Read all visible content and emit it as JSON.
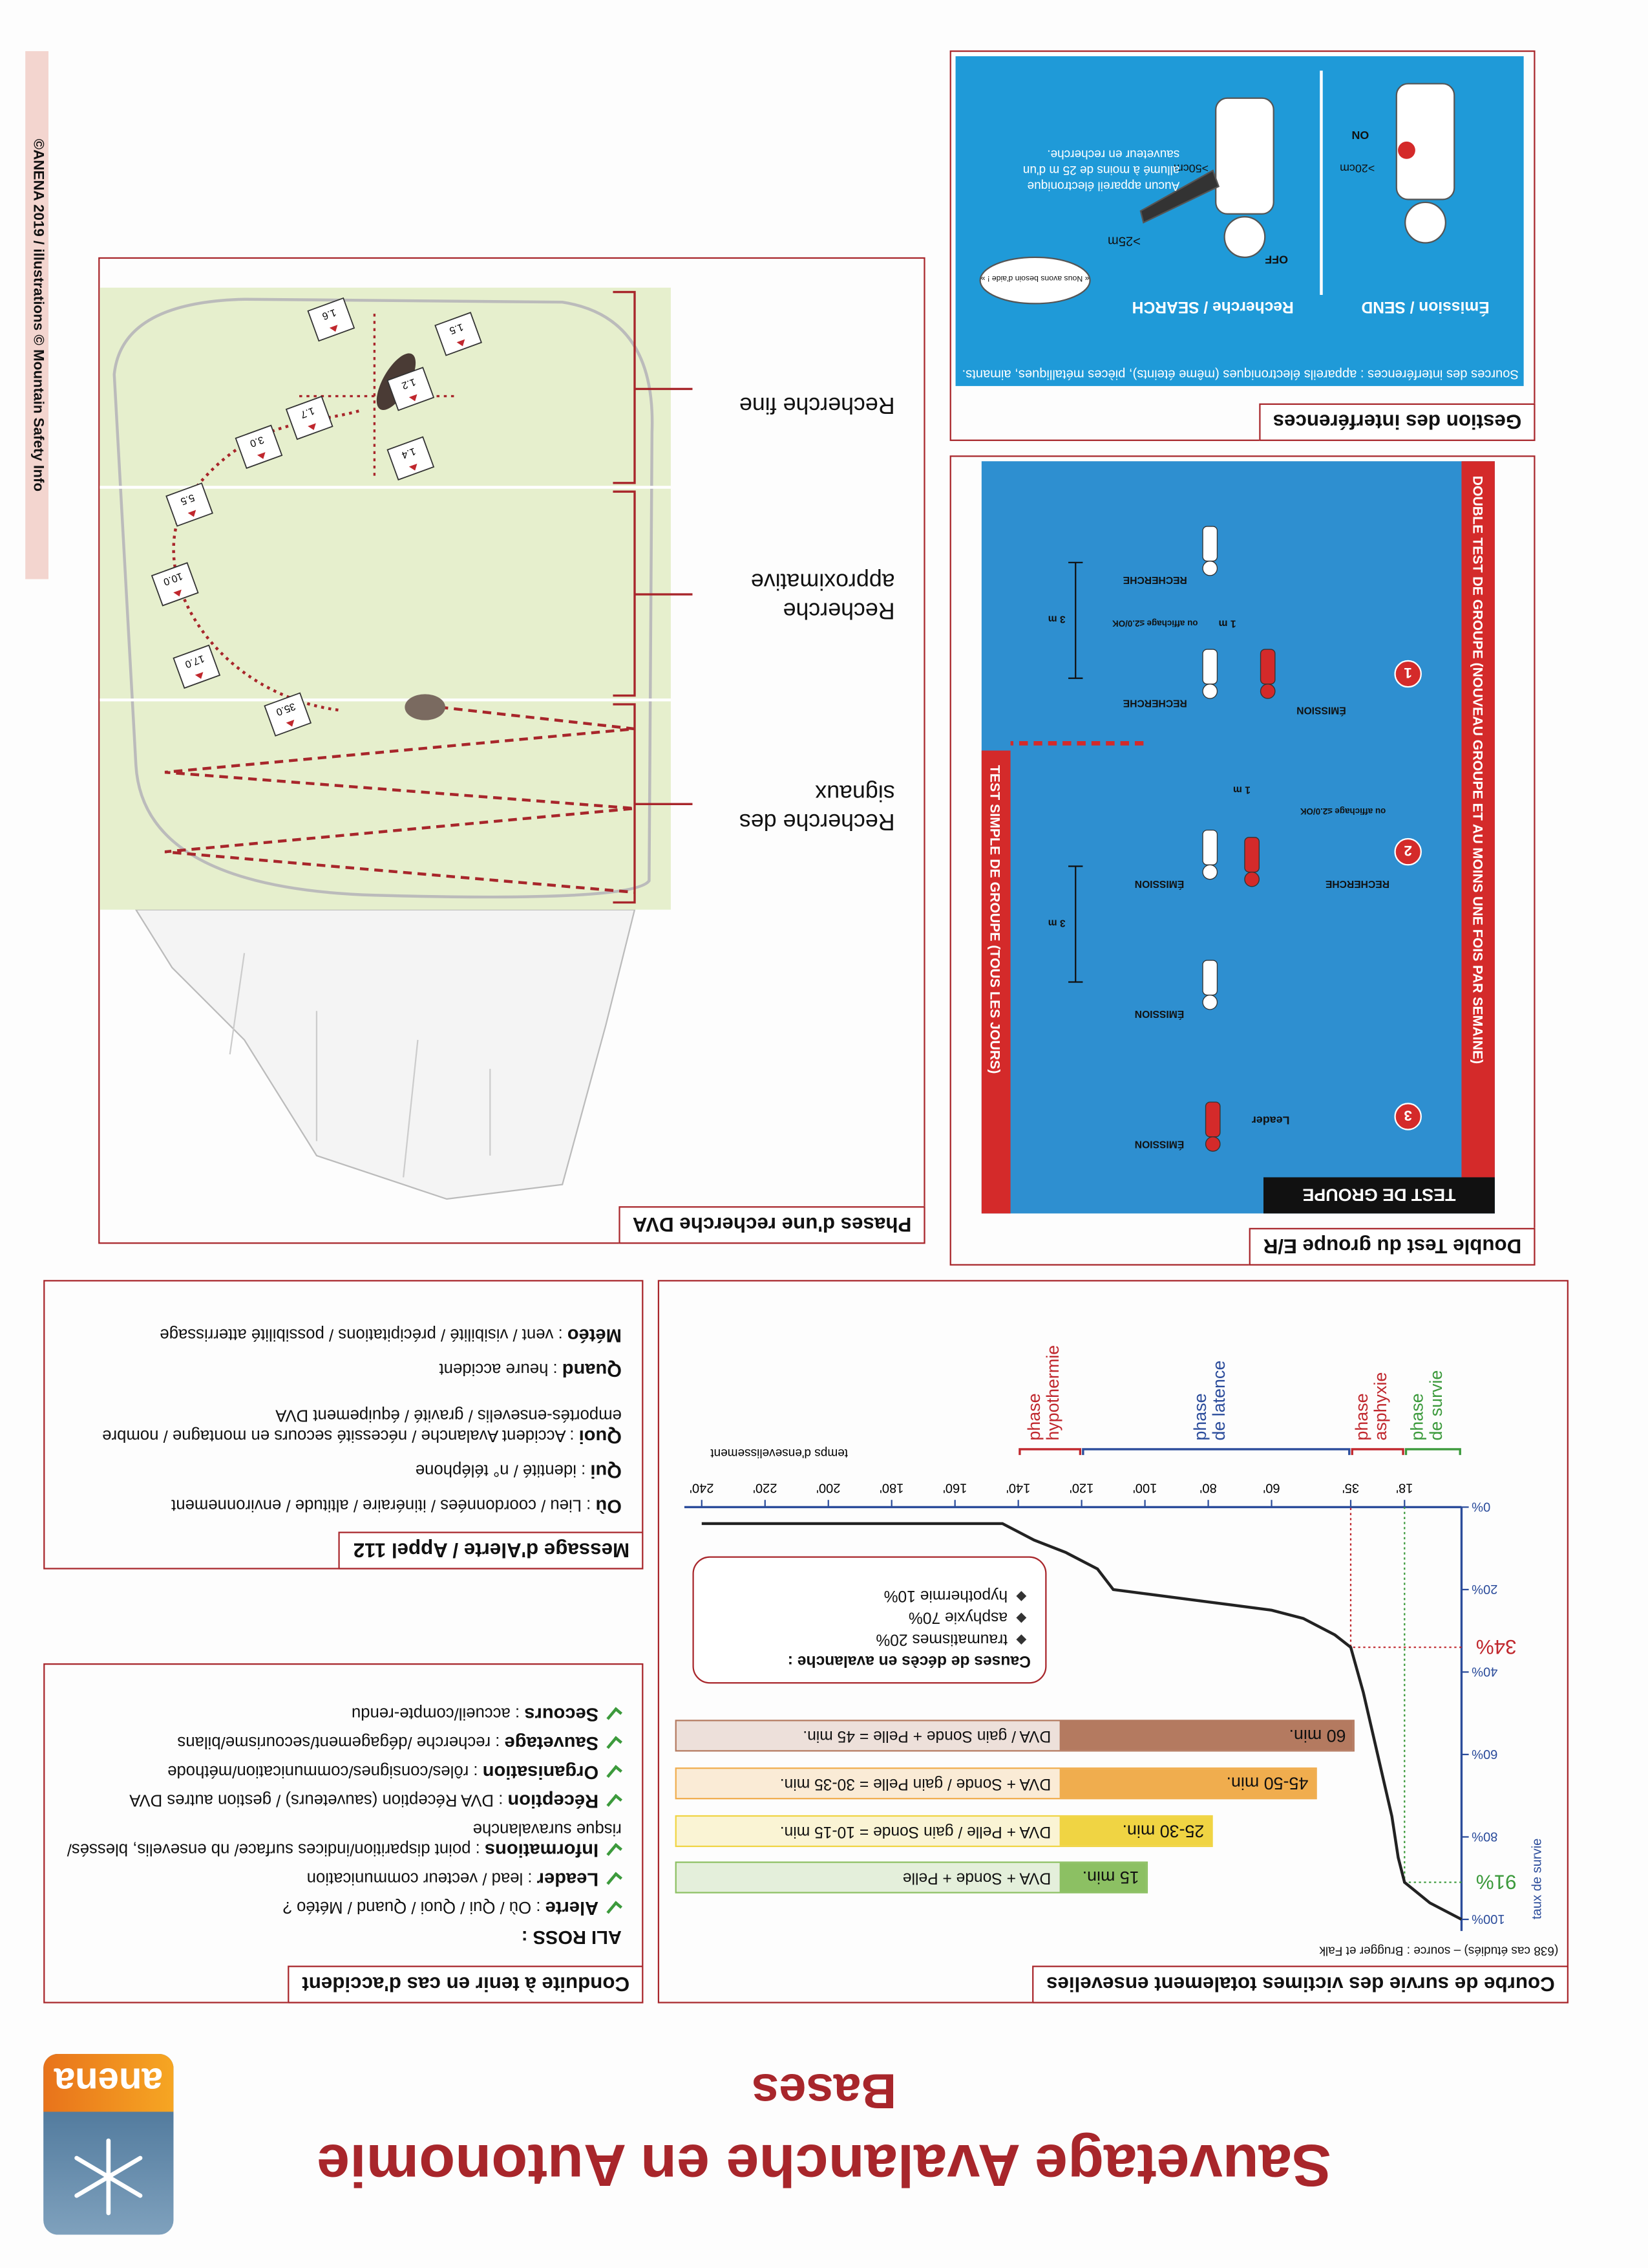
{
  "header": {
    "title": "Sauvetage Avalanche en Autonomie",
    "subtitle": "Bases",
    "logo": "anena"
  },
  "credit": "©ANENA 2019 / illustrations © Mountain Safety Info",
  "conduct": {
    "title": "Conduite à tenir en cas d'accident",
    "heading": "ALI ROSS :",
    "items": [
      {
        "key": "Alerte",
        "text": ": Où / Qui / Quoi / Quand / Météo ?"
      },
      {
        "key": "Leader",
        "text": ": lead / vecteur communication"
      },
      {
        "key": "Informations",
        "text": ": point disparition/indices surface/ nb ensevelis, blessés/ risque suravalanche"
      },
      {
        "key": "Réception",
        "text": ": DVA Réception (sauveteurs) / gestion autres DVA"
      },
      {
        "key": "Organisation",
        "text": ": rôles/consignes/communication/méthode"
      },
      {
        "key": "Sauvetage",
        "text": ": recherche /dégagement/secourisme/bilans"
      },
      {
        "key": "Secours",
        "text": ": accueil/compte-rendu"
      }
    ]
  },
  "alert": {
    "title": "Message d'Alerte / Appel 112",
    "items": [
      {
        "key": "Où",
        "text": ": Lieu / coordonnées / itinéraire / altitude / environnement"
      },
      {
        "key": "Qui",
        "text": ": identité / n° téléphone"
      },
      {
        "key": "Quoi",
        "text": ": Accident Avalanche / nécessité secours en montagne / nombre emportés-ensevelis / gravité / équipement DVA"
      },
      {
        "key": "Quand",
        "text": ": heure accident"
      },
      {
        "key": "Météo",
        "text": ": vent / visibilité / précipitations / possibilité atterrissage"
      }
    ]
  },
  "survival": {
    "title": "Courbe de survie des victimes totalement ensevelies",
    "source": "(638 cas étudiés) – source : Brugger et Falk",
    "y_label": "taux de survie",
    "x_label": "temps d'ensevelissement",
    "xlim": [
      0,
      240
    ],
    "ylim": [
      0,
      100
    ],
    "xticks": [
      {
        "value": 18,
        "label": "18'"
      },
      {
        "value": 35,
        "label": "35'"
      },
      {
        "value": 60,
        "label": "60'"
      },
      {
        "value": 80,
        "label": "80'"
      },
      {
        "value": 100,
        "label": "100'"
      },
      {
        "value": 120,
        "label": "120'"
      },
      {
        "value": 140,
        "label": "140'"
      },
      {
        "value": 160,
        "label": "160'"
      },
      {
        "value": 180,
        "label": "180'"
      },
      {
        "value": 200,
        "label": "200'"
      },
      {
        "value": 220,
        "label": "220'"
      },
      {
        "value": 240,
        "label": "240'"
      }
    ],
    "yticks": [
      {
        "value": 0,
        "label": "0%"
      },
      {
        "value": 20,
        "label": "20%"
      },
      {
        "value": 40,
        "label": "40%"
      },
      {
        "value": 60,
        "label": "60%"
      },
      {
        "value": 80,
        "label": "80%"
      },
      {
        "value": 100,
        "label": "100%"
      }
    ],
    "curve": {
      "x": [
        0,
        10,
        18,
        20,
        22,
        25,
        28,
        31,
        35,
        40,
        50,
        60,
        80,
        100,
        110,
        115,
        125,
        135,
        140,
        145,
        240
      ],
      "y": [
        100,
        96,
        91,
        85,
        75,
        65,
        55,
        45,
        34,
        31,
        27,
        25,
        23,
        21,
        20,
        15,
        11,
        8,
        6,
        4,
        4
      ],
      "color": "#222222"
    },
    "markers": [
      {
        "x": 18,
        "y": 91,
        "label": "91%",
        "color": "#3c9a3c"
      },
      {
        "x": 35,
        "y": 34,
        "label": "34%",
        "color": "#c0272d"
      }
    ],
    "phases": [
      {
        "lines": [
          "phase",
          "de survie"
        ],
        "from": 0,
        "to": 18,
        "color": "#3c9a3c"
      },
      {
        "lines": [
          "phase",
          "asphyxie"
        ],
        "from": 18,
        "to": 35,
        "color": "#c0272d"
      },
      {
        "lines": [
          "phase",
          "de latence"
        ],
        "from": 35,
        "to": 120,
        "color": "#2b4c9b"
      },
      {
        "lines": [
          "phase",
          "hypothermie"
        ],
        "from": 120,
        "to": 140,
        "color": "#c0272d"
      }
    ],
    "rescue": [
      {
        "time": "15 min.",
        "method": "DVA + Sonde + Pelle",
        "color": "#8cc063"
      },
      {
        "time": "25-30 min.",
        "method": "DVA + Pelle / gain Sonde = 10-15 min.",
        "color": "#f0d443"
      },
      {
        "time": "45-50 min.",
        "method": "DVA + Sonde / gain Pelle = 30-35 min.",
        "color": "#f0ad4e"
      },
      {
        "time": "60 min.",
        "method": "DVA / gain Sonde + Pelle = 45 min.",
        "color": "#b47a60"
      }
    ],
    "causes": {
      "title": "Causes de décès en avalanche :",
      "items": [
        "traumatismes 20%",
        "asphyxie 70%",
        "hypothermie 10%"
      ]
    }
  },
  "search": {
    "title": "Phases d'une recherche DVA",
    "phases": [
      "Recherche des signaux",
      "Recherche approximative",
      "Recherche fine"
    ],
    "distances": [
      "35.0",
      "17.0",
      "10.0",
      "5.5",
      "3.0",
      "1.7",
      "1.4",
      "1.5",
      "1.6",
      "1.2"
    ]
  },
  "group_test": {
    "title": "Double Test du groupe E/R",
    "header": "TEST DE GROUPE",
    "double": "DOUBLE TEST DE GROUPE (NOUVEAU GROUPE ET AU MOINS UNE FOIS PAR SEMAINE)",
    "simple": "TEST SIMPLE DE GROUPE (TOUS LES JOURS)",
    "steps": [
      "1",
      "2",
      "3"
    ],
    "emission": "ÉMISSION",
    "reception": "RECHERCHE",
    "leader": "Leader",
    "dist_near": "1 m",
    "dist_far": "3 m",
    "display": "ou affichage ≤2.0/OK"
  },
  "interference": {
    "title": "Gestion des interférences",
    "sources": "Sources des interférences : appareils électroniques (même éteints), pièces métalliques, aimants.",
    "send": "Émission / SEND",
    "search": "Recherche / SEARCH",
    "on": "ON",
    "off": "OFF",
    "send_distance": ">20cm",
    "search_distance": ">50cm",
    "device_distance": ">25m",
    "rule": "Aucun appareil électronique allumé à moins de 25 m d'un sauveteur en recherche.",
    "call": "« Nous avons besoin d'aide ! »"
  }
}
